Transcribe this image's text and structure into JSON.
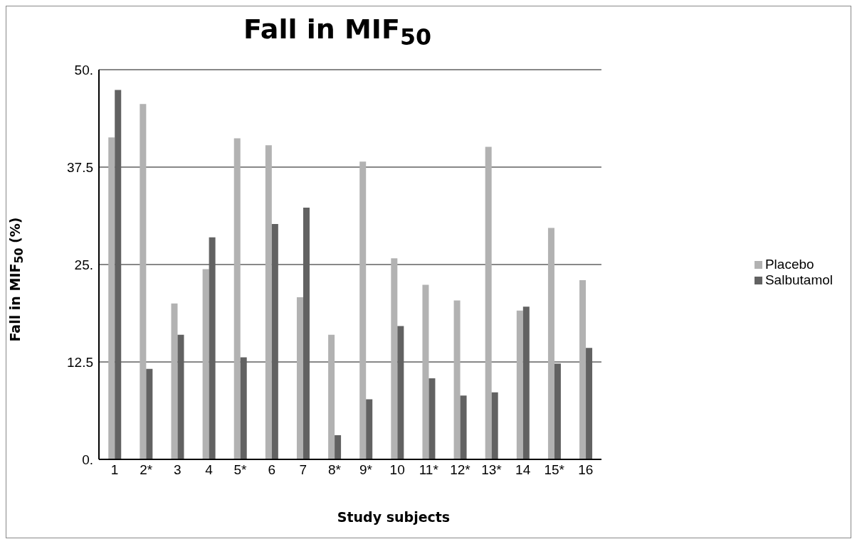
{
  "chart_data": {
    "type": "bar",
    "title": "Fall in MIF$_{50}$",
    "xlabel": "Study subjects",
    "ylabel": "Fall in MIF$_{50}$ (%)",
    "categories": [
      "1",
      "2*",
      "3",
      "4",
      "5*",
      "6",
      "7",
      "8*",
      "9*",
      "10",
      "11*",
      "12*",
      "13*",
      "14",
      "15*",
      "16"
    ],
    "series": [
      {
        "name": "Placebo",
        "color": "#b2b2b2",
        "values": [
          41.3,
          45.6,
          20.0,
          24.4,
          41.2,
          40.3,
          20.8,
          16.0,
          38.2,
          25.8,
          22.4,
          20.4,
          40.1,
          19.1,
          29.7,
          23.0
        ]
      },
      {
        "name": "Salbutamol",
        "color": "#626262",
        "values": [
          47.4,
          11.6,
          16.0,
          28.5,
          13.1,
          30.2,
          32.3,
          3.1,
          7.7,
          17.1,
          10.4,
          8.2,
          8.6,
          19.6,
          12.3,
          14.3
        ]
      }
    ],
    "ylim": [
      0,
      50
    ],
    "yticks": [
      {
        "value": 0,
        "label": "0."
      },
      {
        "value": 12.5,
        "label": "12.5"
      },
      {
        "value": 25,
        "label": "25."
      },
      {
        "value": 37.5,
        "label": "37.5"
      },
      {
        "value": 50,
        "label": "50."
      }
    ],
    "grid": "y",
    "legend": "right"
  }
}
